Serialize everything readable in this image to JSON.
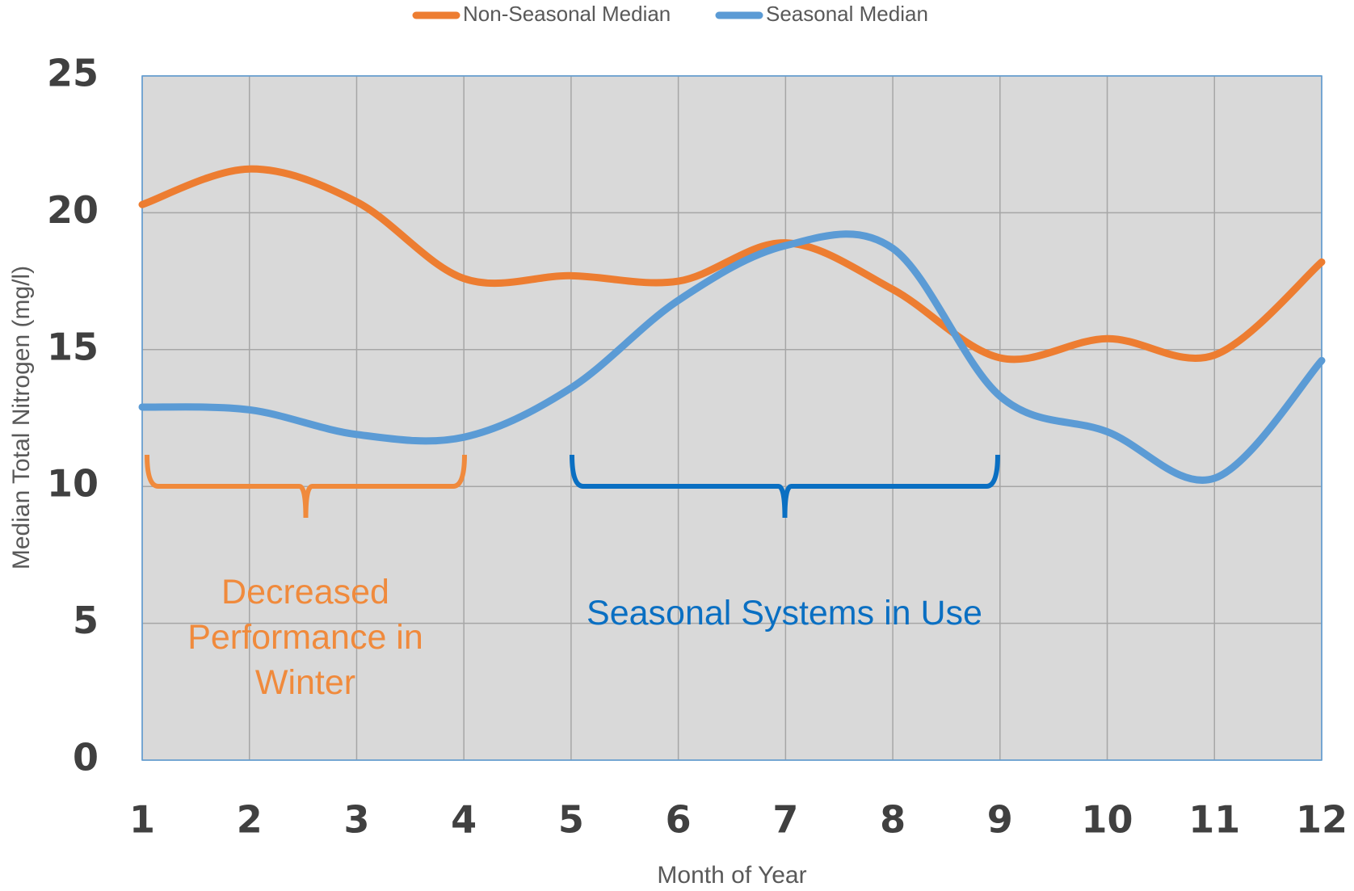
{
  "chart_data": {
    "type": "line",
    "x": [
      1,
      2,
      3,
      4,
      5,
      6,
      7,
      8,
      9,
      10,
      11,
      12
    ],
    "series": [
      {
        "name": "Non-Seasonal Median",
        "color": "#ed7d31",
        "values": [
          20.3,
          21.6,
          20.4,
          17.6,
          17.7,
          17.5,
          18.9,
          17.2,
          14.7,
          15.4,
          14.8,
          18.2
        ]
      },
      {
        "name": "Seasonal Median",
        "color": "#5b9bd5",
        "values": [
          12.9,
          12.8,
          11.9,
          11.8,
          13.6,
          16.8,
          18.8,
          18.7,
          13.3,
          12.0,
          10.3,
          14.6
        ]
      }
    ],
    "xlim": [
      1,
      12
    ],
    "xticks": [
      1,
      2,
      3,
      4,
      5,
      6,
      7,
      8,
      9,
      10,
      11,
      12
    ],
    "ylim": [
      0,
      25
    ],
    "yticks": [
      0,
      5,
      10,
      15,
      20,
      25
    ],
    "xlabel": "Month of Year",
    "ylabel": "Median Total Nitrogen (mg/l)",
    "grid": true,
    "legend": "top",
    "smooth": true,
    "annotations": [
      {
        "text": "Decreased Performance in Winter",
        "color": "#f08a3c"
      },
      {
        "text": "Seasonal Systems in Use",
        "color": "#0a6fc2"
      }
    ]
  }
}
